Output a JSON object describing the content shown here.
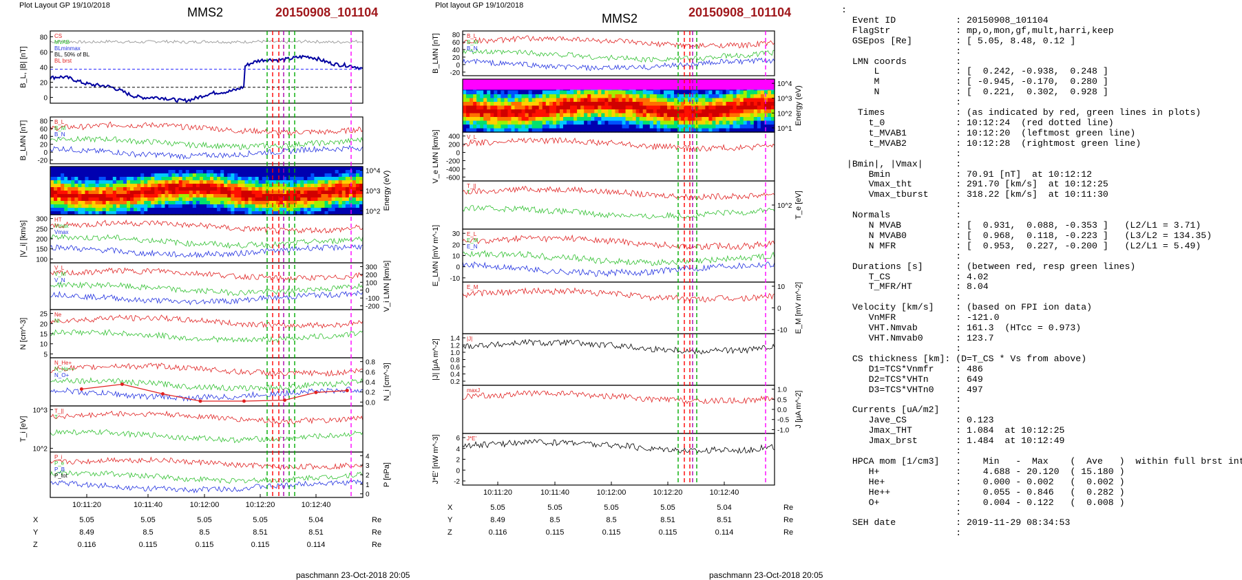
{
  "headers": {
    "left_layout": "Plot Layout GP 19/10/2018",
    "right_layout": "Plot layout GP 19/10/2018",
    "spacecraft": "MMS2",
    "event_id": "20150908_101104"
  },
  "footer": {
    "left": "paschmann 23-Oct-2018 20:05",
    "right": "paschmann 23-Oct-2018 20:05"
  },
  "time_axis": {
    "ticks": [
      "10:11:20",
      "10:11:40",
      "10:12:00",
      "10:12:20",
      "10:12:40"
    ]
  },
  "position_table": {
    "unit": "Re",
    "rows": [
      {
        "label": "X",
        "values": [
          "5.05",
          "5.05",
          "5.05",
          "5.05",
          "5.04"
        ]
      },
      {
        "label": "Y",
        "values": [
          "8.49",
          "8.5",
          "8.5",
          "8.51",
          "8.51"
        ]
      },
      {
        "label": "Z",
        "values": [
          "0.116",
          "0.115",
          "0.115",
          "0.115",
          "0.114"
        ]
      }
    ]
  },
  "chart_data": [
    {
      "type": "line",
      "panel": "left-1",
      "ylabel": "B_L, |B| [nT]",
      "yticks": [
        "0",
        "20",
        "40",
        "60",
        "80"
      ],
      "legend": [
        "CS",
        "MVAB",
        "BLminmax",
        "BL, 50% of BL",
        "BL brst"
      ],
      "colors": [
        "#c8c8c8",
        "#1a1aff",
        "#0000a0"
      ]
    },
    {
      "type": "line",
      "panel": "left-2",
      "ylabel": "B_LMN [nT]",
      "yticks": [
        "-20",
        "0",
        "20",
        "40",
        "60",
        "80"
      ],
      "legend": [
        "B_L",
        "B_M",
        "B_N"
      ]
    },
    {
      "type": "heatmap",
      "panel": "left-3",
      "ylabel": "Energy (eV)",
      "yticks": [
        "10^2",
        "10^3",
        "10^4"
      ]
    },
    {
      "type": "line",
      "panel": "left-4",
      "ylabel": "|V_i| [km/s]",
      "yticks": [
        "100",
        "150",
        "200",
        "250",
        "300"
      ],
      "legend": [
        "HT",
        "Vmax",
        "Vmax"
      ]
    },
    {
      "type": "line",
      "panel": "left-5",
      "ylabel": "V_i LMN [km/s]",
      "yticks": [
        "-200",
        "-100",
        "0",
        "100",
        "200",
        "300"
      ],
      "legend": [
        "V_L",
        "V_M",
        "V_N"
      ]
    },
    {
      "type": "line",
      "panel": "left-6",
      "ylabel": "N [cm^-3]",
      "yticks": [
        "5",
        "10",
        "15",
        "20",
        "25"
      ],
      "legend": [
        "Ne",
        "Ni"
      ]
    },
    {
      "type": "line",
      "panel": "left-7",
      "ylabel": "N_i [cm^-3]",
      "yticks": [
        "0.0",
        "0.2",
        "0.4",
        "0.6",
        "0.8"
      ],
      "legend": [
        "N_He+",
        "N_He++",
        "N_O+"
      ]
    },
    {
      "type": "line",
      "panel": "left-8",
      "ylabel": "T_i [eV]",
      "yticks": [
        "10^2",
        "10^3"
      ],
      "legend": [
        "T_||",
        "T"
      ]
    },
    {
      "type": "line",
      "panel": "left-9",
      "ylabel": "P [nPa]",
      "yticks": [
        "0",
        "1",
        "2",
        "3",
        "4"
      ],
      "legend": [
        "P_i",
        "P_e",
        "P_B",
        "P_tot"
      ]
    },
    {
      "type": "line",
      "panel": "right-1",
      "ylabel": "B_LMN [nT]",
      "yticks": [
        "-20",
        "0",
        "20",
        "40",
        "60",
        "80"
      ],
      "legend": [
        "B_L",
        "B_M",
        "B_N"
      ]
    },
    {
      "type": "heatmap",
      "panel": "right-2",
      "ylabel": "Energy (eV)",
      "yticks": [
        "10^1",
        "10^2",
        "10^3",
        "10^4"
      ]
    },
    {
      "type": "line",
      "panel": "right-3",
      "ylabel": "V_e LMN [km/s]",
      "yticks": [
        "-600",
        "-400",
        "-200",
        "0",
        "200",
        "400"
      ],
      "legend": [
        "V_L"
      ]
    },
    {
      "type": "line",
      "panel": "right-4",
      "ylabel": "T_e [eV]",
      "yticks": [
        "10^2"
      ],
      "legend": [
        "T_||",
        "T"
      ]
    },
    {
      "type": "line",
      "panel": "right-5",
      "ylabel": "E_LMN [mV m^-1]",
      "yticks": [
        "-10",
        "0",
        "10",
        "20",
        "30"
      ],
      "legend": [
        "E_L",
        "E_M",
        "E_N"
      ]
    },
    {
      "type": "line",
      "panel": "right-6",
      "ylabel": "E_M [mV m^-2]",
      "yticks": [
        "-10",
        "0",
        "10"
      ],
      "legend": [
        "E_M"
      ]
    },
    {
      "type": "line",
      "panel": "right-7",
      "ylabel": "|J| [μA m^-2]",
      "yticks": [
        "0.2",
        "0.4",
        "0.6",
        "0.8",
        "1.0",
        "1.2",
        "1.4"
      ],
      "legend": [
        "|J|"
      ]
    },
    {
      "type": "line",
      "panel": "right-8",
      "ylabel": "J [μA m^-2]",
      "yticks": [
        "-1.0",
        "-0.5",
        "0.0",
        "0.5",
        "1.0"
      ],
      "legend": [
        "maxJ"
      ]
    },
    {
      "type": "line",
      "panel": "right-9",
      "ylabel": "J*E' [nW m^-3]",
      "yticks": [
        "-2",
        "0",
        "2",
        "4",
        "6"
      ],
      "legend": [
        "J*E'"
      ]
    }
  ],
  "info_text": [
    ":",
    "  Event ID           : 20150908_101104",
    "  FlagStr            : mp,o,mon,gf,mult,harri,keep",
    "  GSEpos [Re]        : [ 5.05, 8.48, 0.12 ]",
    "                     :",
    "  LMN coords         :",
    "      L              : [  0.242, -0.938,  0.248 ]",
    "      M              : [ -0.945, -0.170,  0.280 ]",
    "      N              : [  0.221,  0.302,  0.928 ]",
    "                     :",
    "   Times             : (as indicated by red, green lines in plots)",
    "     t_0             : 10:12:24  (red dotted line)",
    "     t_MVAB1         : 10:12:20  (leftmost green line)",
    "     t_MVAB2         : 10:12:28  (rightmost green line)",
    "                     :",
    " |Bmin|, |Vmax|      :",
    "     Bmin            : 70.91 [nT]  at 10:12:12",
    "     Vmax_tht        : 291.70 [km/s]  at 10:12:25",
    "     Vmax_tburst     : 318.22 [km/s]  at 10:11:30",
    "                     :",
    "  Normals            :",
    "     N MVAB          : [  0.931,  0.088, -0.353 ]   (L2/L1 = 3.71)",
    "     N MVAB0         : [  0.968,  0.118, -0.223 ]   (L3/L2 = 134.35)",
    "     N MFR           : [  0.953,  0.227, -0.200 ]   (L2/L1 = 5.49)",
    "                     :",
    "  Durations [s]      : (between red, resp green lines)",
    "     T_CS            : 4.02",
    "     T_MFR/HT        : 8.04",
    "                     :",
    "  Velocity [km/s]    : (based on FPI ion data)",
    "     VnMFR           : -121.0",
    "     VHT.Nmvab       : 161.3  (HTcc = 0.973)",
    "     VHT.Nmvab0      : 123.7",
    "                     :",
    "  CS thickness [km]: (D=T_CS * Vs from above)",
    "     D1=TCS*Vnmfr    : 486",
    "     D2=TCS*VHTn     : 649",
    "     D3=TCS*VHTn0    : 497",
    "                     :",
    "  Currents [uA/m2]   :",
    "     Jave_CS         : 0.123",
    "     Jmax_THT        : 1.084  at 10:12:25",
    "     Jmax_brst       : 1.484  at 10:12:49",
    "                     :",
    "  HPCA mom [1/cm3]   :    Min   -  Max    (  Ave   )  within full brst int",
    "     H+              :    4.688 - 20.120  ( 15.180 )",
    "     He+             :    0.000 - 0.002   (  0.002 )",
    "     He++            :    0.055 - 0.846   (  0.282 )",
    "     O+              :    0.004 - 0.122   (  0.008 )",
    "                     :",
    "  SEH date           : 2019-11-29 08:34:53",
    "                     :"
  ]
}
